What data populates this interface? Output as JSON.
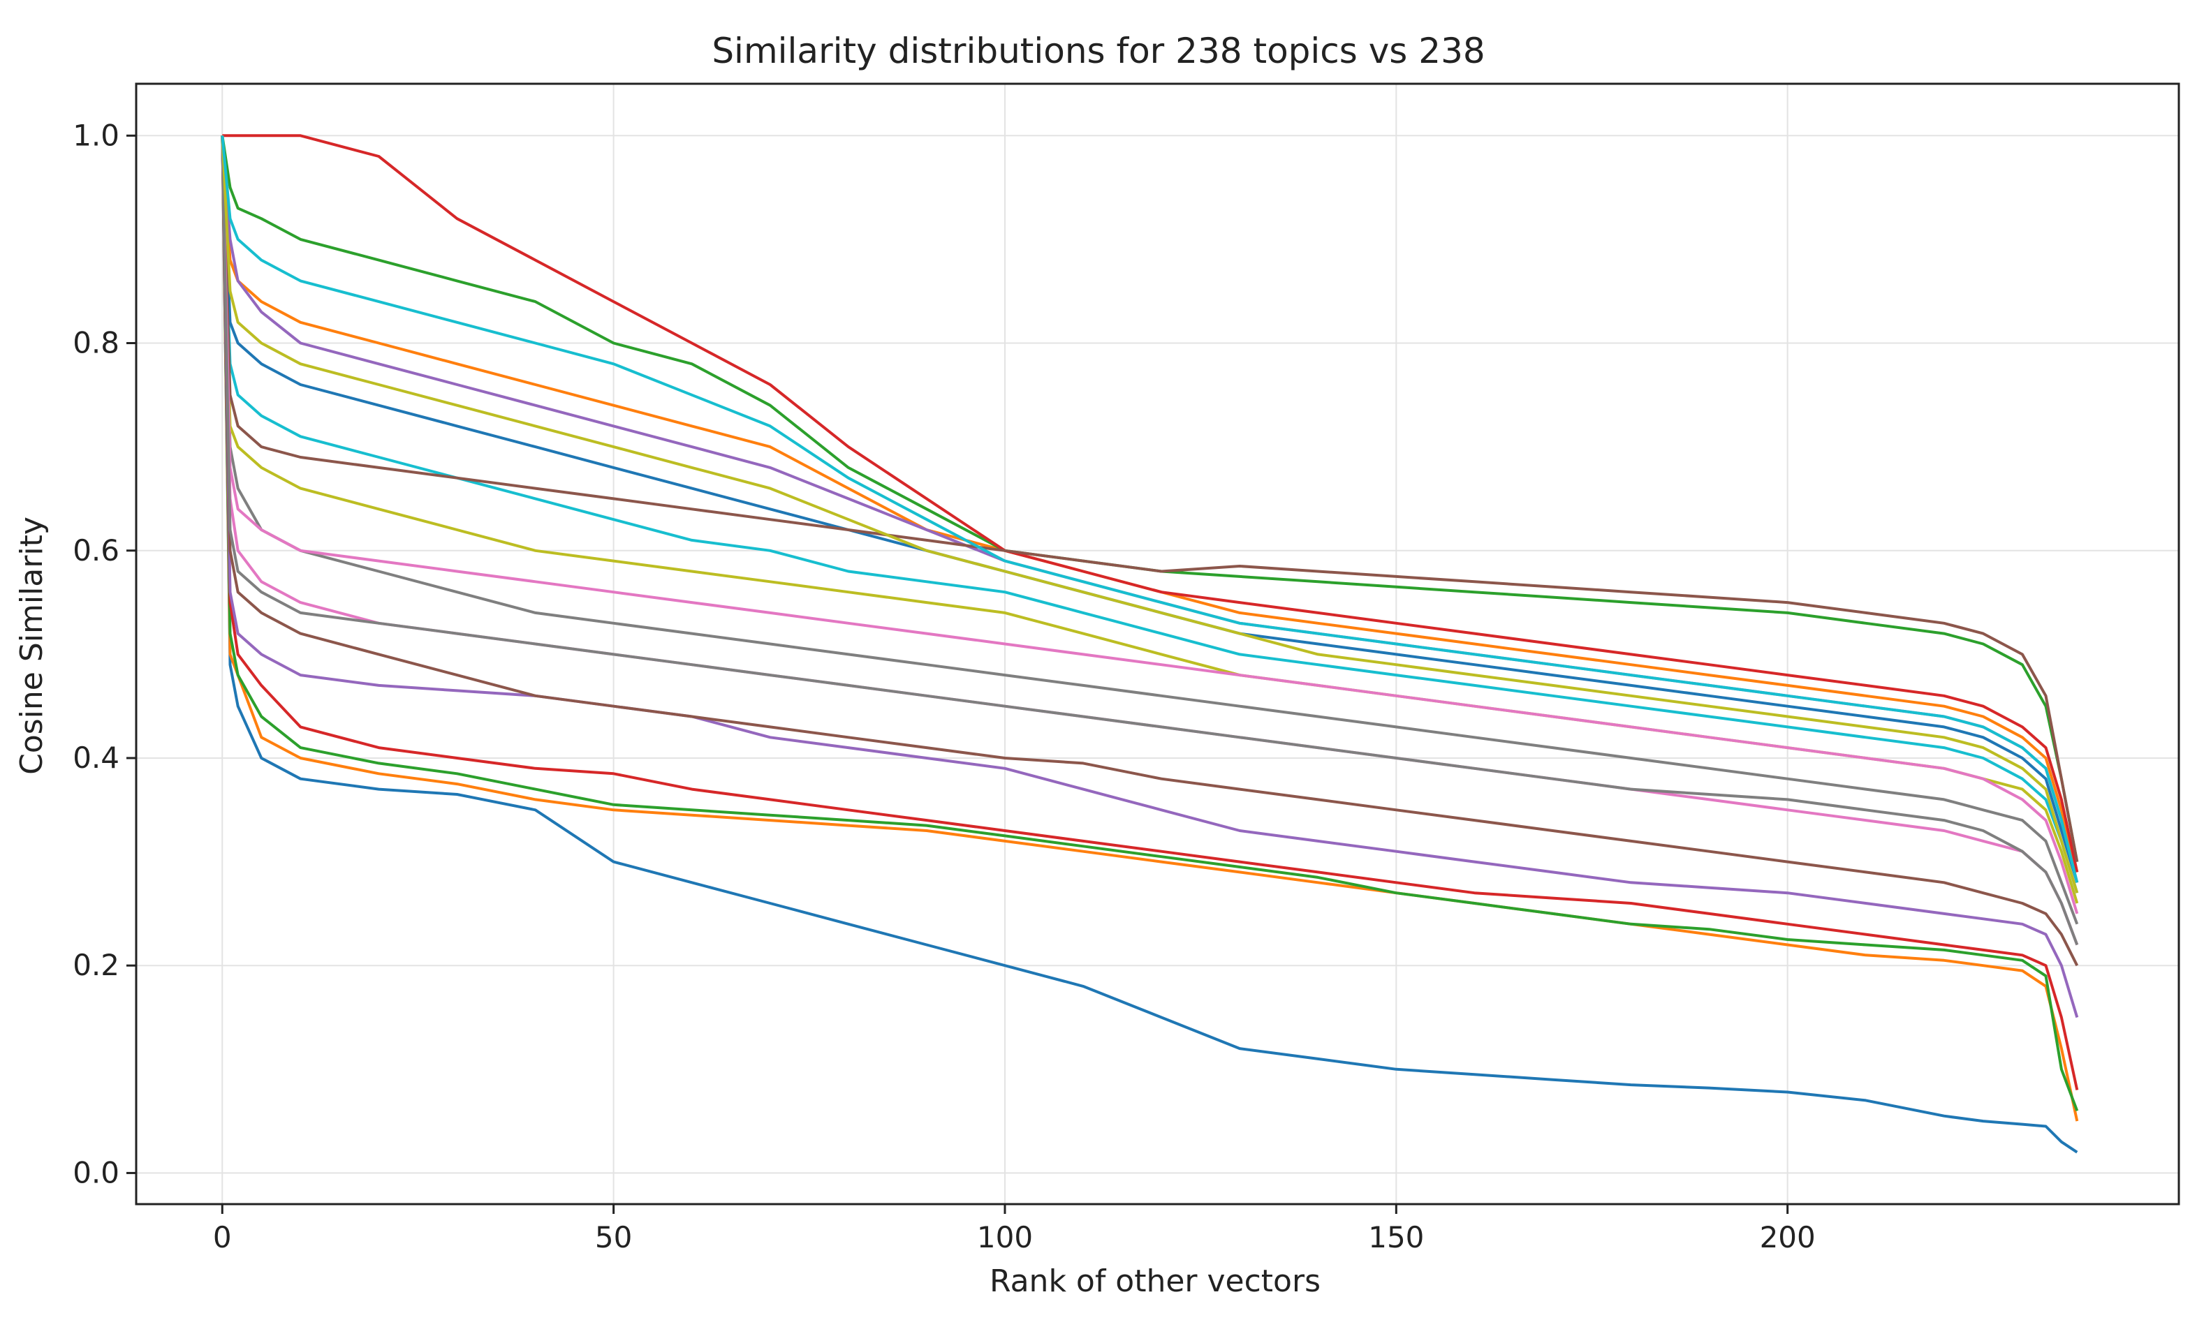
{
  "chart_data": {
    "type": "line",
    "title": "Similarity distributions for 238 topics vs 238",
    "xlabel": "Rank of other vectors",
    "ylabel": "Cosine Similarity",
    "xlim": [
      -11,
      250
    ],
    "ylim": [
      -0.03,
      1.05
    ],
    "xticks": [
      0,
      50,
      100,
      150,
      200
    ],
    "yticks": [
      0.0,
      0.2,
      0.4,
      0.6,
      0.8,
      1.0
    ],
    "xtick_labels": [
      "0",
      "50",
      "100",
      "150",
      "200"
    ],
    "ytick_labels": [
      "0.0",
      "0.2",
      "0.4",
      "0.6",
      "0.8",
      "1.0"
    ],
    "grid": true,
    "legend": "none",
    "colors": [
      "#1f77b4",
      "#ff7f0e",
      "#2ca02c",
      "#d62728",
      "#9467bd",
      "#8c564b",
      "#e377c2",
      "#7f7f7f",
      "#bcbd22",
      "#17becf"
    ],
    "x_points": [
      0,
      1,
      2,
      5,
      10,
      20,
      30,
      40,
      50,
      60,
      70,
      80,
      90,
      100,
      110,
      120,
      130,
      140,
      150,
      160,
      170,
      180,
      190,
      200,
      210,
      220,
      225,
      230,
      233,
      235,
      237
    ],
    "series": [
      {
        "values": [
          1.0,
          0.49,
          0.45,
          0.4,
          0.38,
          0.37,
          0.365,
          0.35,
          0.3,
          0.28,
          0.26,
          0.24,
          0.22,
          0.2,
          0.18,
          0.15,
          0.12,
          0.11,
          0.1,
          0.095,
          0.09,
          0.085,
          0.082,
          0.078,
          0.07,
          0.055,
          0.05,
          0.047,
          0.045,
          0.03,
          0.02
        ]
      },
      {
        "values": [
          1.0,
          0.5,
          0.48,
          0.42,
          0.4,
          0.385,
          0.375,
          0.36,
          0.35,
          0.345,
          0.34,
          0.335,
          0.33,
          0.32,
          0.31,
          0.3,
          0.29,
          0.28,
          0.27,
          0.26,
          0.25,
          0.24,
          0.23,
          0.22,
          0.21,
          0.205,
          0.2,
          0.195,
          0.18,
          0.12,
          0.05
        ]
      },
      {
        "values": [
          1.0,
          0.52,
          0.48,
          0.44,
          0.41,
          0.395,
          0.385,
          0.37,
          0.355,
          0.35,
          0.345,
          0.34,
          0.335,
          0.325,
          0.315,
          0.305,
          0.295,
          0.285,
          0.27,
          0.26,
          0.25,
          0.24,
          0.235,
          0.225,
          0.22,
          0.215,
          0.21,
          0.205,
          0.19,
          0.1,
          0.06
        ]
      },
      {
        "values": [
          1.0,
          0.55,
          0.5,
          0.47,
          0.43,
          0.41,
          0.4,
          0.39,
          0.385,
          0.37,
          0.36,
          0.35,
          0.34,
          0.33,
          0.32,
          0.31,
          0.3,
          0.29,
          0.28,
          0.27,
          0.265,
          0.26,
          0.25,
          0.24,
          0.23,
          0.22,
          0.215,
          0.21,
          0.2,
          0.15,
          0.08
        ]
      },
      {
        "values": [
          1.0,
          0.56,
          0.52,
          0.5,
          0.48,
          0.47,
          0.465,
          0.46,
          0.45,
          0.44,
          0.42,
          0.41,
          0.4,
          0.39,
          0.37,
          0.35,
          0.33,
          0.32,
          0.31,
          0.3,
          0.29,
          0.28,
          0.275,
          0.27,
          0.26,
          0.25,
          0.245,
          0.24,
          0.23,
          0.2,
          0.15
        ]
      },
      {
        "values": [
          1.0,
          0.6,
          0.56,
          0.54,
          0.52,
          0.5,
          0.48,
          0.46,
          0.45,
          0.44,
          0.43,
          0.42,
          0.41,
          0.4,
          0.395,
          0.38,
          0.37,
          0.36,
          0.35,
          0.34,
          0.33,
          0.32,
          0.31,
          0.3,
          0.29,
          0.28,
          0.27,
          0.26,
          0.25,
          0.23,
          0.2
        ]
      },
      {
        "values": [
          1.0,
          0.65,
          0.6,
          0.57,
          0.55,
          0.53,
          0.52,
          0.51,
          0.5,
          0.49,
          0.48,
          0.47,
          0.46,
          0.45,
          0.44,
          0.43,
          0.42,
          0.41,
          0.4,
          0.39,
          0.38,
          0.37,
          0.36,
          0.35,
          0.34,
          0.33,
          0.32,
          0.31,
          0.29,
          0.26,
          0.22
        ]
      },
      {
        "values": [
          1.0,
          0.7,
          0.66,
          0.62,
          0.6,
          0.58,
          0.56,
          0.54,
          0.53,
          0.52,
          0.51,
          0.5,
          0.49,
          0.48,
          0.47,
          0.46,
          0.45,
          0.44,
          0.43,
          0.42,
          0.41,
          0.4,
          0.39,
          0.38,
          0.37,
          0.36,
          0.35,
          0.34,
          0.32,
          0.28,
          0.24
        ]
      },
      {
        "values": [
          1.0,
          0.72,
          0.7,
          0.68,
          0.66,
          0.64,
          0.62,
          0.6,
          0.59,
          0.58,
          0.57,
          0.56,
          0.55,
          0.54,
          0.52,
          0.5,
          0.48,
          0.47,
          0.46,
          0.45,
          0.44,
          0.43,
          0.42,
          0.41,
          0.4,
          0.39,
          0.38,
          0.37,
          0.35,
          0.31,
          0.26
        ]
      },
      {
        "values": [
          1.0,
          0.78,
          0.75,
          0.73,
          0.71,
          0.69,
          0.67,
          0.65,
          0.63,
          0.61,
          0.6,
          0.58,
          0.57,
          0.56,
          0.54,
          0.52,
          0.5,
          0.49,
          0.48,
          0.47,
          0.46,
          0.45,
          0.44,
          0.43,
          0.42,
          0.41,
          0.4,
          0.38,
          0.36,
          0.32,
          0.27
        ]
      },
      {
        "values": [
          1.0,
          0.82,
          0.8,
          0.78,
          0.76,
          0.74,
          0.72,
          0.7,
          0.68,
          0.66,
          0.64,
          0.62,
          0.6,
          0.58,
          0.56,
          0.54,
          0.52,
          0.51,
          0.5,
          0.49,
          0.48,
          0.47,
          0.46,
          0.45,
          0.44,
          0.43,
          0.42,
          0.4,
          0.38,
          0.33,
          0.28
        ]
      },
      {
        "values": [
          1.0,
          0.88,
          0.86,
          0.84,
          0.82,
          0.8,
          0.78,
          0.76,
          0.74,
          0.72,
          0.7,
          0.66,
          0.62,
          0.6,
          0.58,
          0.56,
          0.54,
          0.53,
          0.52,
          0.51,
          0.5,
          0.49,
          0.48,
          0.47,
          0.46,
          0.45,
          0.44,
          0.42,
          0.4,
          0.35,
          0.29
        ]
      },
      {
        "values": [
          1.0,
          0.95,
          0.93,
          0.92,
          0.9,
          0.88,
          0.86,
          0.84,
          0.8,
          0.78,
          0.74,
          0.68,
          0.64,
          0.6,
          0.59,
          0.58,
          0.575,
          0.57,
          0.565,
          0.56,
          0.555,
          0.55,
          0.545,
          0.54,
          0.53,
          0.52,
          0.51,
          0.49,
          0.45,
          0.38,
          0.3
        ]
      },
      {
        "values": [
          1.0,
          1.0,
          1.0,
          1.0,
          1.0,
          0.98,
          0.92,
          0.88,
          0.84,
          0.8,
          0.76,
          0.7,
          0.65,
          0.6,
          0.58,
          0.56,
          0.55,
          0.54,
          0.53,
          0.52,
          0.51,
          0.5,
          0.49,
          0.48,
          0.47,
          0.46,
          0.45,
          0.43,
          0.41,
          0.36,
          0.29
        ]
      },
      {
        "values": [
          1.0,
          0.9,
          0.86,
          0.83,
          0.8,
          0.78,
          0.76,
          0.74,
          0.72,
          0.7,
          0.68,
          0.65,
          0.62,
          0.59,
          0.57,
          0.55,
          0.53,
          0.52,
          0.51,
          0.5,
          0.49,
          0.48,
          0.47,
          0.46,
          0.45,
          0.44,
          0.43,
          0.41,
          0.39,
          0.34,
          0.28
        ]
      },
      {
        "values": [
          1.0,
          0.75,
          0.72,
          0.7,
          0.69,
          0.68,
          0.67,
          0.66,
          0.65,
          0.64,
          0.63,
          0.62,
          0.61,
          0.6,
          0.59,
          0.58,
          0.585,
          0.58,
          0.575,
          0.57,
          0.565,
          0.56,
          0.555,
          0.55,
          0.54,
          0.53,
          0.52,
          0.5,
          0.46,
          0.38,
          0.3
        ]
      },
      {
        "values": [
          1.0,
          0.68,
          0.64,
          0.62,
          0.6,
          0.59,
          0.58,
          0.57,
          0.56,
          0.55,
          0.54,
          0.53,
          0.52,
          0.51,
          0.5,
          0.49,
          0.48,
          0.47,
          0.46,
          0.45,
          0.44,
          0.43,
          0.42,
          0.41,
          0.4,
          0.39,
          0.38,
          0.36,
          0.34,
          0.3,
          0.25
        ]
      },
      {
        "values": [
          1.0,
          0.62,
          0.58,
          0.56,
          0.54,
          0.53,
          0.52,
          0.51,
          0.5,
          0.49,
          0.48,
          0.47,
          0.46,
          0.45,
          0.44,
          0.43,
          0.42,
          0.41,
          0.4,
          0.39,
          0.38,
          0.37,
          0.365,
          0.36,
          0.35,
          0.34,
          0.33,
          0.31,
          0.29,
          0.26,
          0.22
        ]
      },
      {
        "values": [
          1.0,
          0.85,
          0.82,
          0.8,
          0.78,
          0.76,
          0.74,
          0.72,
          0.7,
          0.68,
          0.66,
          0.63,
          0.6,
          0.58,
          0.56,
          0.54,
          0.52,
          0.5,
          0.49,
          0.48,
          0.47,
          0.46,
          0.45,
          0.44,
          0.43,
          0.42,
          0.41,
          0.39,
          0.37,
          0.32,
          0.27
        ]
      },
      {
        "values": [
          1.0,
          0.92,
          0.9,
          0.88,
          0.86,
          0.84,
          0.82,
          0.8,
          0.78,
          0.75,
          0.72,
          0.67,
          0.63,
          0.59,
          0.57,
          0.55,
          0.53,
          0.52,
          0.51,
          0.5,
          0.49,
          0.48,
          0.47,
          0.46,
          0.45,
          0.44,
          0.43,
          0.41,
          0.39,
          0.34,
          0.28
        ]
      }
    ]
  }
}
